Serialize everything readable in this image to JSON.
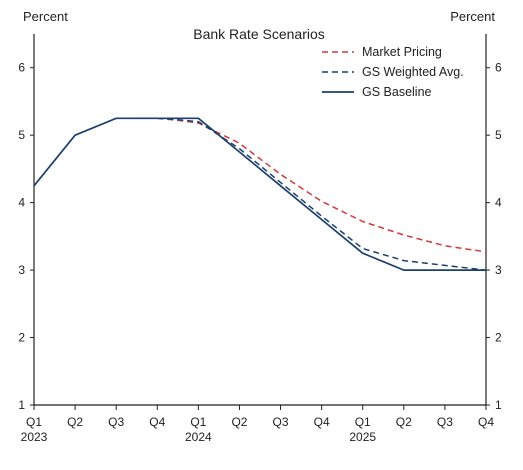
{
  "chart_data": {
    "type": "line",
    "title": "Bank Rate Scenarios",
    "left_unit_label": "Percent",
    "right_unit_label": "Percent",
    "ylim": [
      1,
      6.5
    ],
    "yticks": [
      1,
      2,
      3,
      4,
      5,
      6
    ],
    "x_tick_labels": [
      "Q1",
      "Q2",
      "Q3",
      "Q4",
      "Q1",
      "Q2",
      "Q3",
      "Q4",
      "Q1",
      "Q2",
      "Q3",
      "Q4"
    ],
    "year_labels": [
      {
        "index": 0,
        "label": "2023"
      },
      {
        "index": 4,
        "label": "2024"
      },
      {
        "index": 8,
        "label": "2025"
      }
    ],
    "legend_position": "top-right",
    "series": [
      {
        "name": "Market Pricing",
        "style": "dashed",
        "color": "#d23a3a",
        "points": [
          [
            3.0,
            5.25
          ],
          [
            3.5,
            5.22
          ],
          [
            4.0,
            5.18
          ],
          [
            5.0,
            4.88
          ],
          [
            6.0,
            4.42
          ],
          [
            7.0,
            4.02
          ],
          [
            8.0,
            3.72
          ],
          [
            9.0,
            3.52
          ],
          [
            10.0,
            3.36
          ],
          [
            11.0,
            3.27
          ]
        ]
      },
      {
        "name": "GS Weighted Avg.",
        "style": "dashed",
        "color": "#1c3f6e",
        "points": [
          [
            3.0,
            5.25
          ],
          [
            3.5,
            5.23
          ],
          [
            4.0,
            5.2
          ],
          [
            5.0,
            4.8
          ],
          [
            6.0,
            4.3
          ],
          [
            7.0,
            3.8
          ],
          [
            8.0,
            3.32
          ],
          [
            9.0,
            3.14
          ],
          [
            10.0,
            3.07
          ],
          [
            11.0,
            3.0
          ]
        ]
      },
      {
        "name": "GS Baseline",
        "style": "solid",
        "color": "#1c3f6e",
        "points": [
          [
            0.0,
            4.25
          ],
          [
            1.0,
            5.0
          ],
          [
            2.0,
            5.25
          ],
          [
            3.0,
            5.25
          ],
          [
            4.0,
            5.25
          ],
          [
            5.0,
            4.75
          ],
          [
            6.0,
            4.25
          ],
          [
            7.0,
            3.75
          ],
          [
            8.0,
            3.25
          ],
          [
            9.0,
            3.0
          ],
          [
            10.0,
            3.0
          ],
          [
            11.0,
            3.0
          ]
        ]
      }
    ]
  }
}
